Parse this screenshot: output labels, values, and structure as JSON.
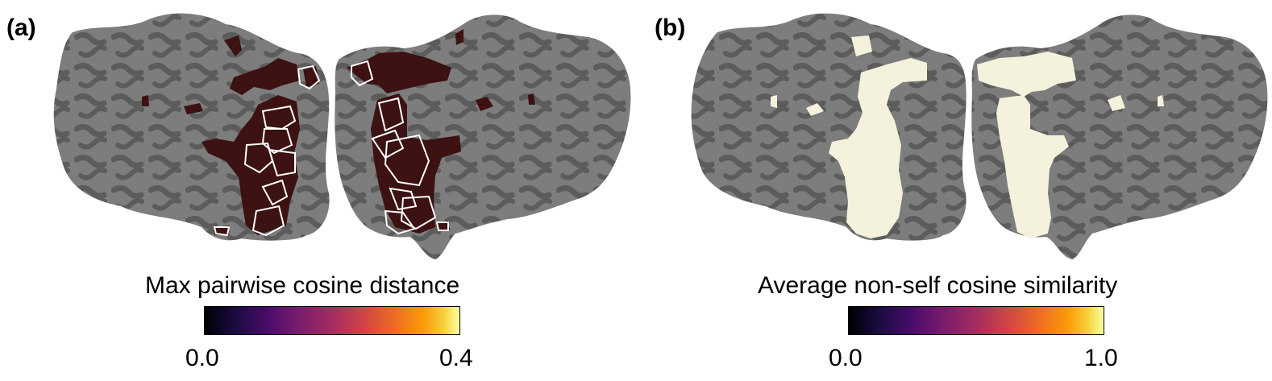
{
  "panels": [
    {
      "label": "(a)",
      "colorbar": {
        "title": "Max pairwise cosine distance",
        "min_label": "0.0",
        "max_label": "0.4",
        "colormap": "inferno",
        "range": [
          0.0,
          0.4
        ]
      },
      "overlay_color": "#3a0d0d",
      "outline_color": "#ffffff"
    },
    {
      "label": "(b)",
      "colorbar": {
        "title": "Average non-self cosine similarity",
        "min_label": "0.0",
        "max_label": "1.0",
        "colormap": "inferno",
        "range": [
          0.0,
          1.0
        ]
      },
      "overlay_color": "#f4f2dc"
    }
  ],
  "colors": {
    "cortex_base": "#7d7d7d",
    "cortex_sulci": "#5c5c5c"
  }
}
